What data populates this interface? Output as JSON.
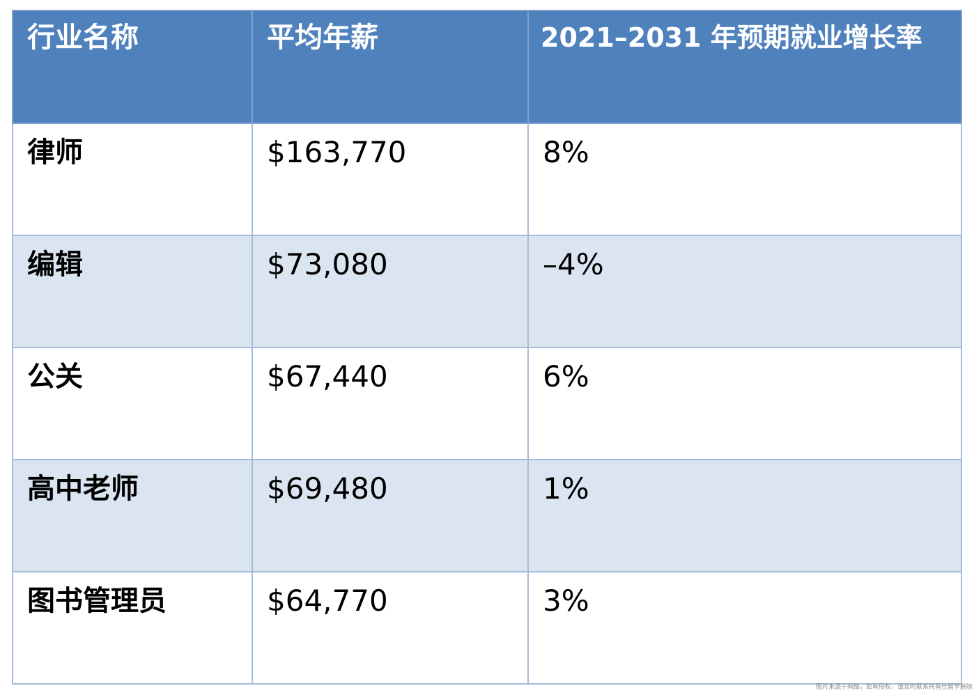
{
  "table": {
    "headers": [
      "行业名称",
      "平均年薪",
      "2021–2031 年预期就业增长率"
    ],
    "rows": [
      {
        "name": "律师",
        "salary": "$163,770",
        "growth": "8%"
      },
      {
        "name": "编辑",
        "salary": "$73,080",
        "growth": "–4%"
      },
      {
        "name": "公关",
        "salary": "$67,440",
        "growth": "6%"
      },
      {
        "name": "高中老师",
        "salary": "$69,480",
        "growth": "1%"
      },
      {
        "name": "图书管理员",
        "salary": "$64,770",
        "growth": "3%"
      }
    ]
  },
  "colors": {
    "header_bg": "#4f81bd",
    "row_alt_bg": "#dbe5f1",
    "border": "#a3bcdb"
  },
  "watermark": "图片来源于网络，如有侵权，请及时联系托普仕留学删除"
}
